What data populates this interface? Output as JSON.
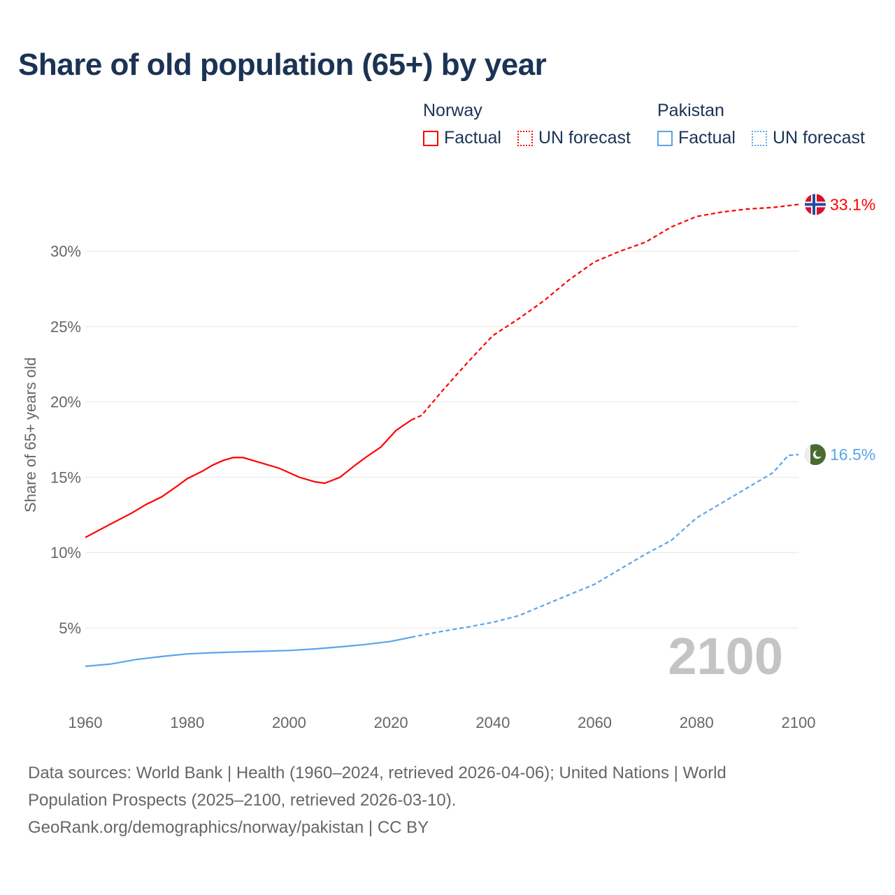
{
  "chart_data": {
    "type": "line",
    "title": "Share of old population (65+) by year",
    "xlabel": "",
    "ylabel": "Share of 65+ years old",
    "xlim": [
      1960,
      2100
    ],
    "ylim": [
      0,
      33.5
    ],
    "x_ticks": [
      "1960",
      "1980",
      "2000",
      "2020",
      "2040",
      "2060",
      "2080",
      "2100"
    ],
    "y_ticks": [
      "5%",
      "10%",
      "15%",
      "20%",
      "25%",
      "30%"
    ],
    "y_tick_values": [
      5,
      10,
      15,
      20,
      25,
      30
    ],
    "grid": true,
    "year_watermark": "2100",
    "legend": {
      "placement": "top-right",
      "groups": [
        {
          "country": "Norway",
          "factual": "Factual",
          "forecast": "UN forecast"
        },
        {
          "country": "Pakistan",
          "factual": "Factual",
          "forecast": "UN forecast"
        }
      ]
    },
    "series": [
      {
        "name": "Norway",
        "color": "#ff0000",
        "end_label": "33.1%",
        "flag": "norway-flag",
        "factual": {
          "x": [
            1960,
            1965,
            1969,
            1972,
            1975,
            1978,
            1980,
            1983,
            1985,
            1987,
            1989,
            1991,
            1994,
            1998,
            2002,
            2005,
            2007,
            2010,
            2013,
            2015,
            2018,
            2021,
            2024
          ],
          "y": [
            11.0,
            11.9,
            12.6,
            13.2,
            13.7,
            14.4,
            14.9,
            15.4,
            15.8,
            16.1,
            16.3,
            16.3,
            16.0,
            15.6,
            15.0,
            14.7,
            14.6,
            15.0,
            15.8,
            16.3,
            17.0,
            18.1,
            18.8
          ]
        },
        "forecast": {
          "x": [
            2024,
            2026,
            2030,
            2035,
            2040,
            2045,
            2050,
            2055,
            2060,
            2065,
            2070,
            2075,
            2080,
            2085,
            2090,
            2095,
            2100
          ],
          "y": [
            18.8,
            19.1,
            20.7,
            22.6,
            24.4,
            25.5,
            26.7,
            28.1,
            29.3,
            30.0,
            30.6,
            31.6,
            32.3,
            32.6,
            32.8,
            32.9,
            33.1
          ]
        }
      },
      {
        "name": "Pakistan",
        "color": "#5aa5e8",
        "end_label": "16.5%",
        "flag": "pakistan-flag",
        "factual": {
          "x": [
            1960,
            1965,
            1970,
            1975,
            1980,
            1985,
            1990,
            1995,
            2000,
            2005,
            2010,
            2015,
            2020,
            2024
          ],
          "y": [
            2.45,
            2.6,
            2.9,
            3.1,
            3.27,
            3.35,
            3.4,
            3.45,
            3.5,
            3.6,
            3.74,
            3.9,
            4.1,
            4.38
          ]
        },
        "forecast": {
          "x": [
            2024,
            2030,
            2035,
            2040,
            2045,
            2050,
            2055,
            2060,
            2065,
            2070,
            2075,
            2080,
            2085,
            2090,
            2095,
            2098,
            2100
          ],
          "y": [
            4.38,
            4.77,
            5.05,
            5.37,
            5.8,
            6.5,
            7.2,
            7.9,
            8.9,
            9.9,
            10.8,
            12.3,
            13.3,
            14.3,
            15.3,
            16.45,
            16.5
          ]
        }
      }
    ]
  },
  "footer": {
    "line1": "Data sources: World Bank | Health (1960–2024, retrieved 2026-04-06); United Nations | World",
    "line2": "Population Prospects (2025–2100, retrieved 2026-03-10).",
    "line3": "GeoRank.org/demographics/norway/pakistan | CC BY"
  }
}
